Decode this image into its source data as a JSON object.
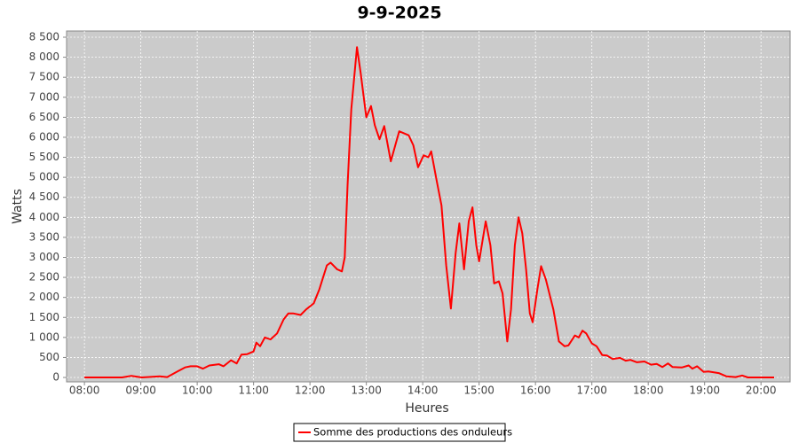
{
  "chart_data": {
    "type": "line",
    "title": "9-9-2025",
    "x_label": "Heures",
    "y_label": "Watts",
    "x": [
      "08:00",
      "08:20",
      "08:40",
      "08:50",
      "09:01",
      "09:20",
      "09:28",
      "09:39",
      "09:47",
      "09:53",
      "10:00",
      "10:06",
      "10:13",
      "10:23",
      "10:28",
      "10:36",
      "10:42",
      "10:47",
      "10:53",
      "11:00",
      "11:03",
      "11:07",
      "11:12",
      "11:18",
      "11:25",
      "11:32",
      "11:37",
      "11:42",
      "11:50",
      "11:56",
      "12:04",
      "12:10",
      "12:18",
      "12:22",
      "12:29",
      "12:34",
      "12:37",
      "12:40",
      "12:44",
      "12:50",
      "12:54",
      "13:00",
      "13:05",
      "13:09",
      "13:14",
      "13:19",
      "13:26",
      "13:32",
      "13:35",
      "13:45",
      "13:50",
      "13:55",
      "14:01",
      "14:06",
      "14:09",
      "14:15",
      "14:20",
      "14:25",
      "14:30",
      "14:35",
      "14:39",
      "14:44",
      "14:49",
      "14:53",
      "14:57",
      "15:00",
      "15:07",
      "15:12",
      "15:16",
      "15:21",
      "15:25",
      "15:30",
      "15:34",
      "15:38",
      "15:42",
      "15:46",
      "15:50",
      "15:54",
      "15:57",
      "16:02",
      "16:06",
      "16:11",
      "16:19",
      "16:25",
      "16:31",
      "16:35",
      "16:42",
      "16:46",
      "16:50",
      "16:54",
      "17:00",
      "17:05",
      "17:11",
      "17:16",
      "17:22",
      "17:30",
      "17:36",
      "17:41",
      "17:48",
      "17:56",
      "18:03",
      "18:09",
      "18:15",
      "18:21",
      "18:26",
      "18:36",
      "18:43",
      "18:47",
      "18:52",
      "18:59",
      "19:04",
      "19:15",
      "19:23",
      "19:33",
      "19:40",
      "19:46",
      "20:14"
    ],
    "series": [
      {
        "name": "Somme des productions des onduleurs",
        "color": "#ff0000",
        "values": [
          0,
          0,
          0,
          40,
          0,
          30,
          10,
          150,
          250,
          280,
          280,
          220,
          300,
          330,
          280,
          430,
          350,
          570,
          580,
          650,
          870,
          780,
          1000,
          950,
          1100,
          1450,
          1600,
          1600,
          1560,
          1700,
          1850,
          2200,
          2800,
          2870,
          2700,
          2650,
          3000,
          4800,
          6700,
          8250,
          7600,
          6500,
          6780,
          6300,
          5950,
          6280,
          5400,
          5900,
          6150,
          6050,
          5800,
          5250,
          5550,
          5500,
          5650,
          4900,
          4300,
          2800,
          1720,
          3100,
          3850,
          2700,
          3900,
          4250,
          3300,
          2900,
          3900,
          3300,
          2350,
          2400,
          2100,
          900,
          1700,
          3300,
          4000,
          3600,
          2700,
          1600,
          1380,
          2200,
          2780,
          2450,
          1700,
          900,
          780,
          800,
          1050,
          1000,
          1170,
          1100,
          850,
          780,
          560,
          550,
          460,
          490,
          420,
          440,
          380,
          400,
          320,
          340,
          260,
          350,
          260,
          250,
          300,
          220,
          280,
          140,
          150,
          110,
          30,
          10,
          50,
          0,
          0
        ]
      }
    ],
    "xlim": [
      "07:41",
      "20:31"
    ],
    "xticks": [
      "08:00",
      "09:00",
      "10:00",
      "11:00",
      "12:00",
      "13:00",
      "14:00",
      "15:00",
      "16:00",
      "17:00",
      "18:00",
      "19:00",
      "20:00"
    ],
    "ylim": [
      -110,
      8655
    ],
    "yticks": [
      0,
      500,
      {
        "value": 1000,
        "label": "1 000"
      },
      {
        "value": 1500,
        "label": "1 500"
      },
      {
        "value": 2000,
        "label": "2 000"
      },
      {
        "value": 2500,
        "label": "2 500"
      },
      {
        "value": 3000,
        "label": "3 000"
      },
      {
        "value": 3500,
        "label": "3 500"
      },
      {
        "value": 4000,
        "label": "4 000"
      },
      {
        "value": 4500,
        "label": "4 500"
      },
      {
        "value": 5000,
        "label": "5 000"
      },
      {
        "value": 5500,
        "label": "5 500"
      },
      {
        "value": 6000,
        "label": "6 000"
      },
      {
        "value": 6500,
        "label": "6 500"
      },
      {
        "value": 7000,
        "label": "7 000"
      },
      {
        "value": 7500,
        "label": "7 500"
      },
      {
        "value": 8000,
        "label": "8 000"
      },
      {
        "value": 8500,
        "label": "8 500"
      }
    ],
    "grid": true,
    "legend": "bottom"
  }
}
